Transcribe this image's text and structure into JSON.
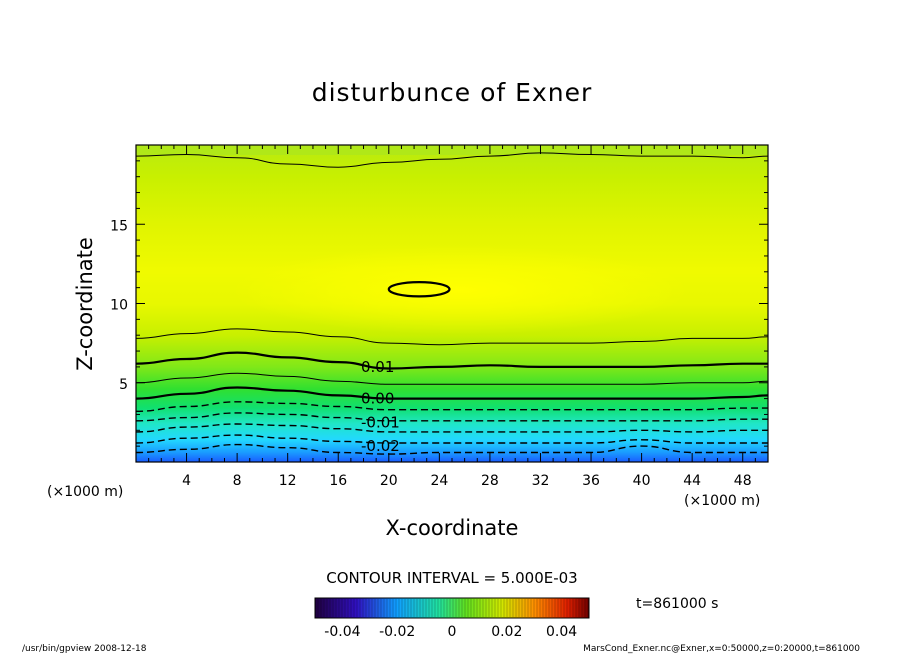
{
  "chart_data": {
    "type": "heatmap",
    "title": "disturbunce of Exner",
    "xlabel": "X-coordinate",
    "ylabel": "Z-coordinate",
    "x_unit": "(×1000 m)",
    "y_unit": "(×1000 m)",
    "xlim": [
      0,
      50
    ],
    "ylim": [
      0,
      20
    ],
    "x_ticks": [
      "4",
      "8",
      "12",
      "16",
      "20",
      "24",
      "28",
      "32",
      "36",
      "40",
      "44",
      "48"
    ],
    "y_ticks": [
      "5",
      "10",
      "15"
    ],
    "contour_interval_label": "CONTOUR INTERVAL = 5.000E-03",
    "contour_labels": [
      {
        "text": "0.01",
        "x": 17.8,
        "z": 6.0
      },
      {
        "text": "0.00",
        "x": 17.8,
        "z": 4.0
      },
      {
        "text": "-0.01",
        "x": 17.8,
        "z": 2.5
      },
      {
        "text": "-0.02",
        "x": 17.8,
        "z": 1.0
      }
    ],
    "contours": [
      {
        "level": -0.025,
        "style": "dashed",
        "z": [
          0.6,
          0.8,
          1.1,
          0.9,
          0.6,
          0.5,
          0.6,
          0.6,
          0.6,
          0.6,
          1.0,
          0.6,
          0.6,
          0.6
        ]
      },
      {
        "level": -0.02,
        "style": "dashed",
        "z": [
          1.2,
          1.5,
          1.7,
          1.5,
          1.3,
          1.2,
          1.2,
          1.2,
          1.2,
          1.2,
          1.4,
          1.2,
          1.2,
          1.2
        ]
      },
      {
        "level": -0.015,
        "style": "dashed",
        "z": [
          1.9,
          2.2,
          2.4,
          2.3,
          2.1,
          1.9,
          1.9,
          1.9,
          1.9,
          1.9,
          2.0,
          1.9,
          2.0,
          2.0
        ]
      },
      {
        "level": -0.01,
        "style": "dashed",
        "z": [
          2.6,
          2.8,
          3.1,
          3.0,
          2.8,
          2.6,
          2.6,
          2.6,
          2.6,
          2.6,
          2.6,
          2.6,
          2.7,
          2.7
        ]
      },
      {
        "level": -0.005,
        "style": "dashed",
        "z": [
          3.2,
          3.5,
          3.8,
          3.7,
          3.5,
          3.3,
          3.3,
          3.3,
          3.3,
          3.3,
          3.3,
          3.3,
          3.4,
          3.4
        ]
      },
      {
        "level": 0.0,
        "style": "solid-thick",
        "z": [
          4.0,
          4.3,
          4.7,
          4.5,
          4.2,
          4.0,
          4.0,
          4.0,
          4.0,
          4.0,
          4.0,
          4.0,
          4.1,
          4.2
        ]
      },
      {
        "level": 0.005,
        "style": "solid",
        "z": [
          5.0,
          5.3,
          5.6,
          5.4,
          5.1,
          4.9,
          4.9,
          4.9,
          4.9,
          4.9,
          4.9,
          5.0,
          5.0,
          5.1
        ]
      },
      {
        "level": 0.01,
        "style": "solid-thick",
        "z": [
          6.2,
          6.5,
          6.9,
          6.6,
          6.3,
          5.9,
          6.0,
          6.1,
          6.0,
          6.0,
          6.0,
          6.1,
          6.2,
          6.2
        ]
      },
      {
        "level": 0.015,
        "style": "solid",
        "z": [
          7.8,
          8.1,
          8.4,
          8.2,
          7.9,
          7.5,
          7.4,
          7.5,
          7.5,
          7.5,
          7.6,
          7.8,
          7.8,
          7.9
        ]
      },
      {
        "level": 0.015,
        "style": "solid",
        "z": [
          19.3,
          19.4,
          19.2,
          18.8,
          18.6,
          18.9,
          19.1,
          19.3,
          19.5,
          19.4,
          19.3,
          19.3,
          19.2,
          19.3
        ]
      }
    ],
    "contour_x": [
      0,
      4,
      8,
      12,
      16,
      20,
      24,
      28,
      32,
      36,
      40,
      44,
      48,
      50
    ],
    "closed_contour": {
      "level": 0.025,
      "style": "solid-thick",
      "center": [
        22.4,
        10.9
      ],
      "half_width": 2.4,
      "half_height": 0.45
    },
    "colorbar": {
      "tick_labels": [
        "-0.04",
        "-0.02",
        "0",
        "0.02",
        "0.04"
      ],
      "range": [
        -0.05,
        0.05
      ]
    },
    "time_label": "t=861000 s",
    "footer_left": "/usr/bin/gpview  2008-12-18",
    "footer_right": "MarsCond_Exner.nc@Exner,x=0:50000,z=0:20000,t=861000"
  }
}
